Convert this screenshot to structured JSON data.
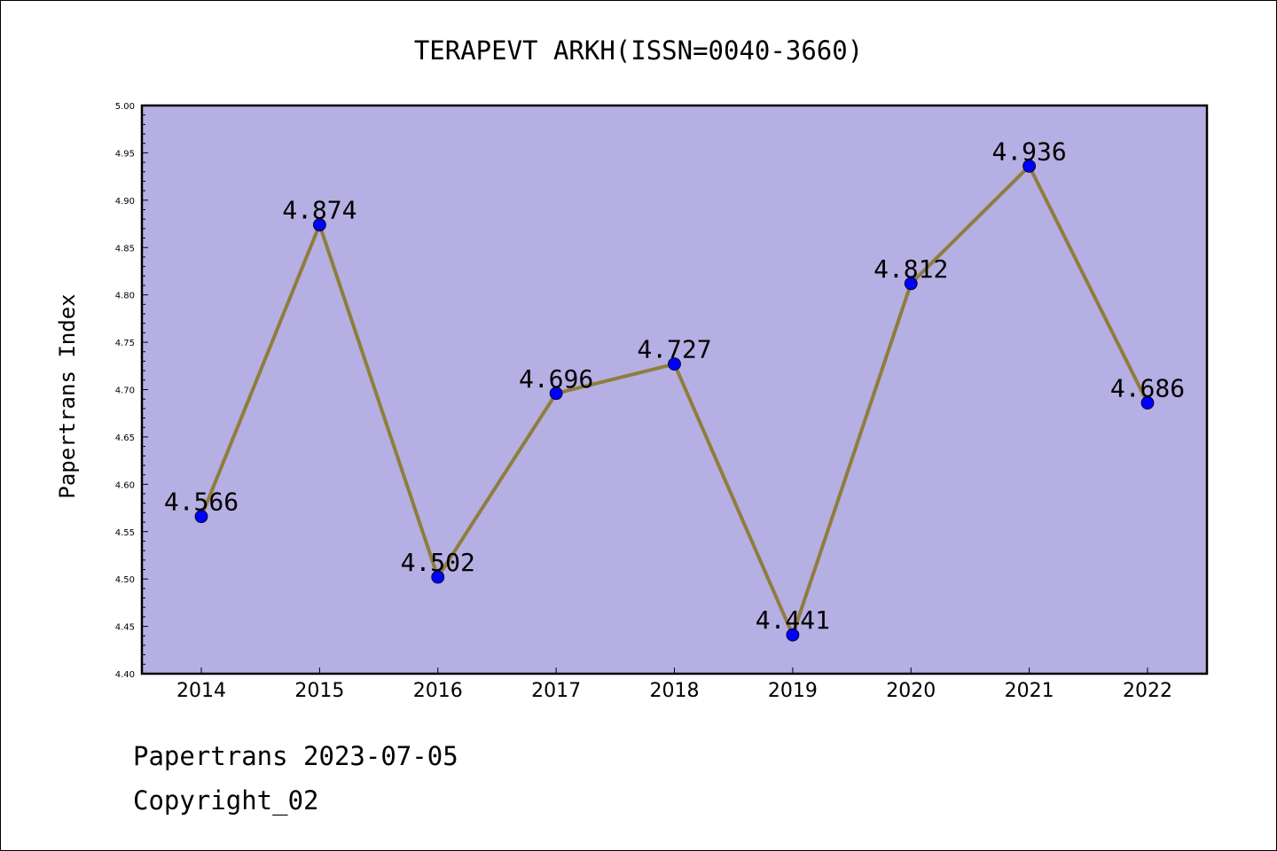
{
  "chart_data": {
    "type": "line",
    "title": "TERAPEVT ARKH(ISSN=0040-3660)",
    "xlabel": "",
    "ylabel": "Papertrans Index",
    "categories": [
      "2014",
      "2015",
      "2016",
      "2017",
      "2018",
      "2019",
      "2020",
      "2021",
      "2022"
    ],
    "series": [
      {
        "values": [
          4.566,
          4.874,
          4.502,
          4.696,
          4.727,
          4.441,
          4.812,
          4.936,
          4.686
        ],
        "data_labels": [
          "4.566",
          "4.874",
          "4.502",
          "4.696",
          "4.727",
          "4.441",
          "4.812",
          "4.936",
          "4.686"
        ]
      }
    ],
    "ylim": [
      4.4,
      5.0
    ],
    "yticks": [
      "4.40",
      "4.45",
      "4.50",
      "4.55",
      "4.60",
      "4.65",
      "4.70",
      "4.75",
      "4.80",
      "4.85",
      "4.90",
      "4.95",
      "5.00"
    ],
    "grid": false,
    "legend": "none",
    "colors": {
      "plot_background": "#b5afe3",
      "line": "#8f7d3c",
      "marker": "#0000ff"
    }
  },
  "footer": {
    "line1": "Papertrans 2023-07-05",
    "line2": "Copyright_02"
  }
}
